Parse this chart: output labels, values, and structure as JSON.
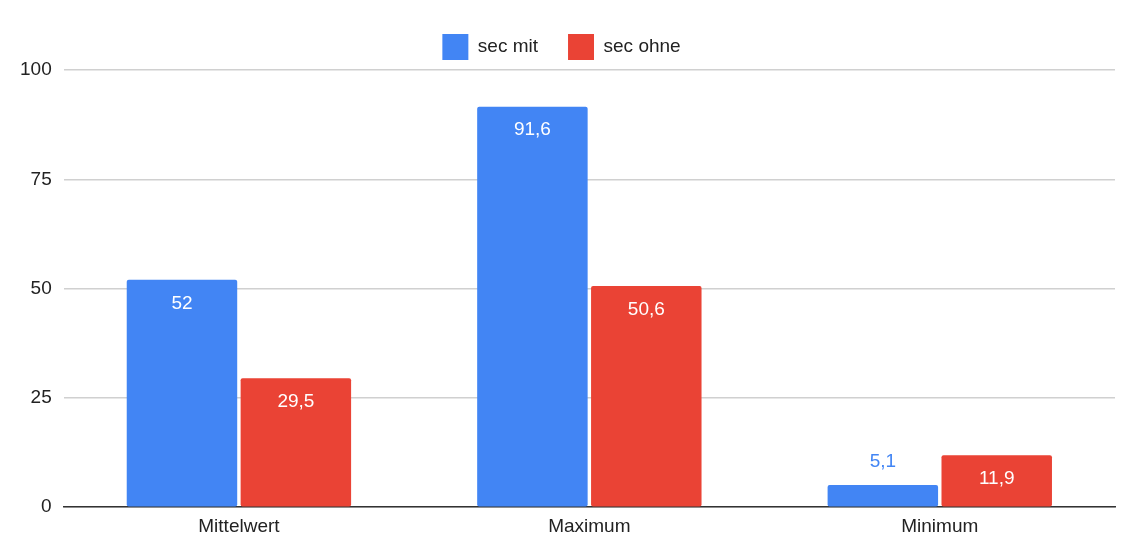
{
  "chart_data": {
    "type": "bar",
    "categories": [
      "Mittelwert",
      "Maximum",
      "Minimum"
    ],
    "series": [
      {
        "name": "sec mit",
        "color": "#4285f4",
        "values": [
          52,
          91.6,
          5.1
        ],
        "value_labels": [
          "52",
          "91,6",
          "5,1"
        ]
      },
      {
        "name": "sec ohne",
        "color": "#ea4335",
        "values": [
          29.5,
          50.6,
          11.9
        ],
        "value_labels": [
          "29,5",
          "50,6",
          "11,9"
        ]
      }
    ],
    "ylim": [
      0,
      100
    ],
    "yticks": [
      0,
      25,
      50,
      75,
      100
    ],
    "grid": "y",
    "legend": "top"
  }
}
